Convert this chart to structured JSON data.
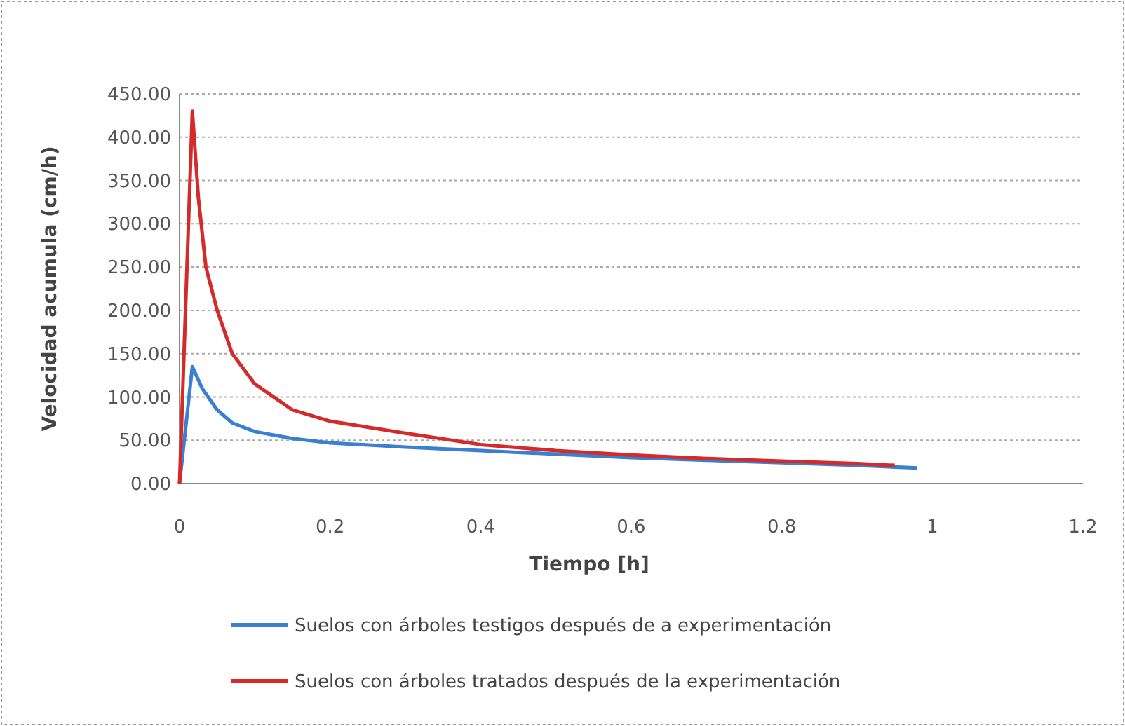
{
  "chart_data": {
    "type": "line",
    "xlabel": "Tiempo [h]",
    "ylabel": "Velocidad acumula (cm/h)",
    "xlim": [
      0,
      1.2
    ],
    "xticks": [
      0,
      0.2,
      0.4,
      0.6,
      0.8,
      1,
      1.2
    ],
    "ylim": [
      0,
      450
    ],
    "yticks": [
      {
        "value": 0,
        "label": "0.00"
      },
      {
        "value": 50,
        "label": "50.00"
      },
      {
        "value": 100,
        "label": "100.00"
      },
      {
        "value": 150,
        "label": "150.00"
      },
      {
        "value": 200,
        "label": "200.00"
      },
      {
        "value": 250,
        "label": "250.00"
      },
      {
        "value": 300,
        "label": "300.00"
      },
      {
        "value": 350,
        "label": "350.00"
      },
      {
        "value": 400,
        "label": "400.00"
      },
      {
        "value": 450,
        "label": "450.00"
      }
    ],
    "grid": "y",
    "legend": "bottom",
    "marker": "none",
    "line_style": "solid",
    "series": [
      {
        "name": "Suelos con árboles testigos después de  a experimentación",
        "color": "#3a7fd0",
        "x": [
          0,
          0.017,
          0.03,
          0.05,
          0.07,
          0.1,
          0.15,
          0.2,
          0.3,
          0.4,
          0.5,
          0.6,
          0.7,
          0.8,
          0.9,
          0.98
        ],
        "values": [
          0,
          135,
          110,
          85,
          70,
          60,
          52,
          47,
          42,
          38,
          34,
          30,
          27,
          24,
          21,
          18
        ]
      },
      {
        "name": "Suelos con árboles tratados después de la experimentación",
        "color": "#d42a2a",
        "x": [
          0,
          0.017,
          0.025,
          0.035,
          0.05,
          0.07,
          0.1,
          0.15,
          0.2,
          0.3,
          0.4,
          0.5,
          0.6,
          0.7,
          0.8,
          0.9,
          0.95
        ],
        "values": [
          0,
          430,
          330,
          250,
          200,
          150,
          115,
          85,
          72,
          58,
          45,
          38,
          33,
          29,
          26,
          23,
          21
        ]
      }
    ]
  }
}
